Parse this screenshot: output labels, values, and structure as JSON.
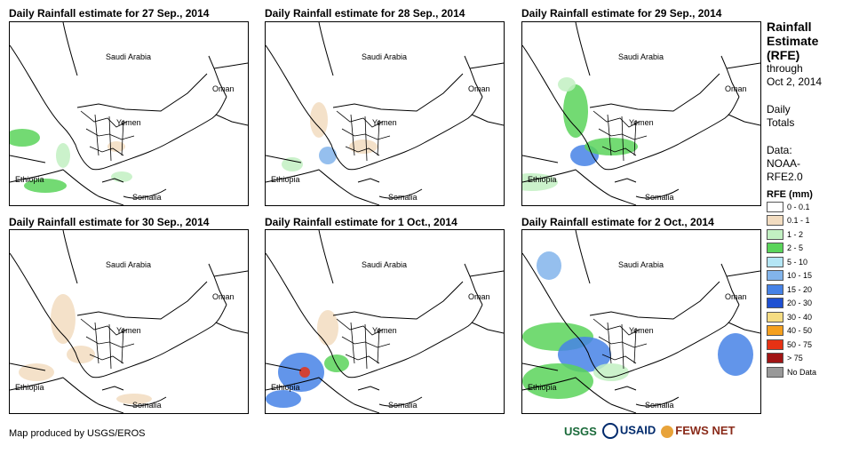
{
  "panels": [
    {
      "title": "Daily Rainfall estimate for 27 Sep., 2014"
    },
    {
      "title": "Daily Rainfall estimate for 28 Sep., 2014"
    },
    {
      "title": "Daily Rainfall estimate for 29 Sep., 2014"
    },
    {
      "title": "Daily Rainfall estimate for 30 Sep., 2014"
    },
    {
      "title": "Daily Rainfall estimate for 1 Oct., 2014"
    },
    {
      "title": "Daily Rainfall estimate for 2 Oct., 2014"
    }
  ],
  "map_labels": {
    "saudi": "Saudi Arabia",
    "oman": "Oman",
    "yemen": "Yemen",
    "ethiopia": "Ethiopia",
    "somalia": "Somalia"
  },
  "side": {
    "title_line1": "Rainfall",
    "title_line2": "Estimate",
    "title_line3": "(RFE)",
    "through": "through",
    "date": "Oct 2, 2014",
    "daily": "Daily",
    "totals": "Totals",
    "data_label": "Data:",
    "data_source1": "NOAA-",
    "data_source2": "RFE2.0"
  },
  "legend": {
    "title": "RFE (mm)",
    "items": [
      {
        "label": "0 - 0.1",
        "color": "#ffffff"
      },
      {
        "label": "0.1 - 1",
        "color": "#f2dcc0"
      },
      {
        "label": "1 - 2",
        "color": "#c2f0c2"
      },
      {
        "label": "2 - 5",
        "color": "#5ad45a"
      },
      {
        "label": "5 - 10",
        "color": "#b4e6f5"
      },
      {
        "label": "10 - 15",
        "color": "#82b4eb"
      },
      {
        "label": "15 - 20",
        "color": "#4682e6"
      },
      {
        "label": "20 - 30",
        "color": "#1e50d2"
      },
      {
        "label": "30 - 40",
        "color": "#f5dc82"
      },
      {
        "label": "40 - 50",
        "color": "#f5a01e"
      },
      {
        "label": "50 - 75",
        "color": "#e63214"
      },
      {
        "label": "> 75",
        "color": "#a01414"
      },
      {
        "label": "No Data",
        "color": "#999999"
      }
    ]
  },
  "credit": "Map produced by USGS/EROS",
  "logos": {
    "usgs": "USGS",
    "usaid": "USAID",
    "fews": "FEWS NET"
  }
}
